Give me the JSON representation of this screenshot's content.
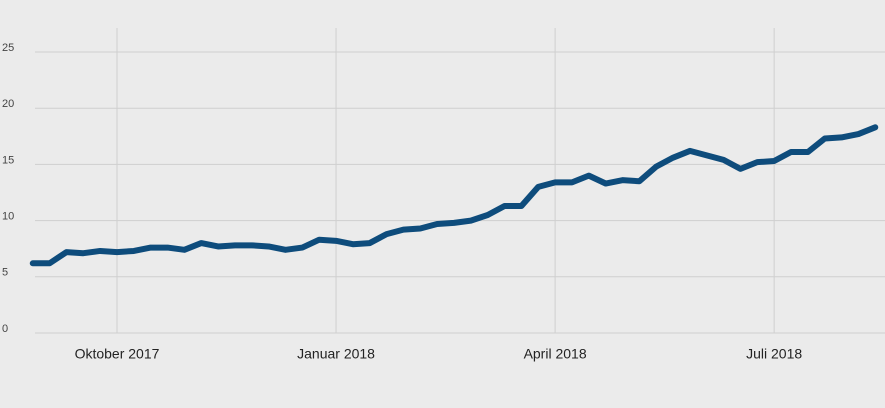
{
  "chart_data": {
    "type": "line",
    "categories": [
      null,
      null,
      null,
      null,
      null,
      "Oktober 2017",
      null,
      null,
      null,
      null,
      null,
      null,
      null,
      null,
      null,
      null,
      null,
      null,
      "Januar 2018",
      null,
      null,
      null,
      null,
      null,
      null,
      null,
      null,
      null,
      null,
      null,
      null,
      "April 2018",
      null,
      null,
      null,
      null,
      null,
      null,
      null,
      null,
      null,
      null,
      null,
      null,
      "Juli 2018",
      null,
      null,
      null,
      null,
      null,
      null
    ],
    "values": [
      6.2,
      6.2,
      7.2,
      7.1,
      7.3,
      7.2,
      7.3,
      7.6,
      7.6,
      7.4,
      8.0,
      7.7,
      7.8,
      7.8,
      7.7,
      7.4,
      7.6,
      8.3,
      8.2,
      7.9,
      8.0,
      8.8,
      9.2,
      9.3,
      9.7,
      9.8,
      10.0,
      10.5,
      11.3,
      11.3,
      13.0,
      13.4,
      13.4,
      14.0,
      13.3,
      13.6,
      13.5,
      14.8,
      15.6,
      16.2,
      15.8,
      15.4,
      14.6,
      15.2,
      15.3,
      16.1,
      16.1,
      17.3,
      17.4,
      17.7,
      18.3
    ],
    "color": "#0e4c7c",
    "ylim": [
      0,
      25
    ],
    "yticks": [
      0,
      5,
      10,
      15,
      20,
      25
    ],
    "grid": true
  }
}
